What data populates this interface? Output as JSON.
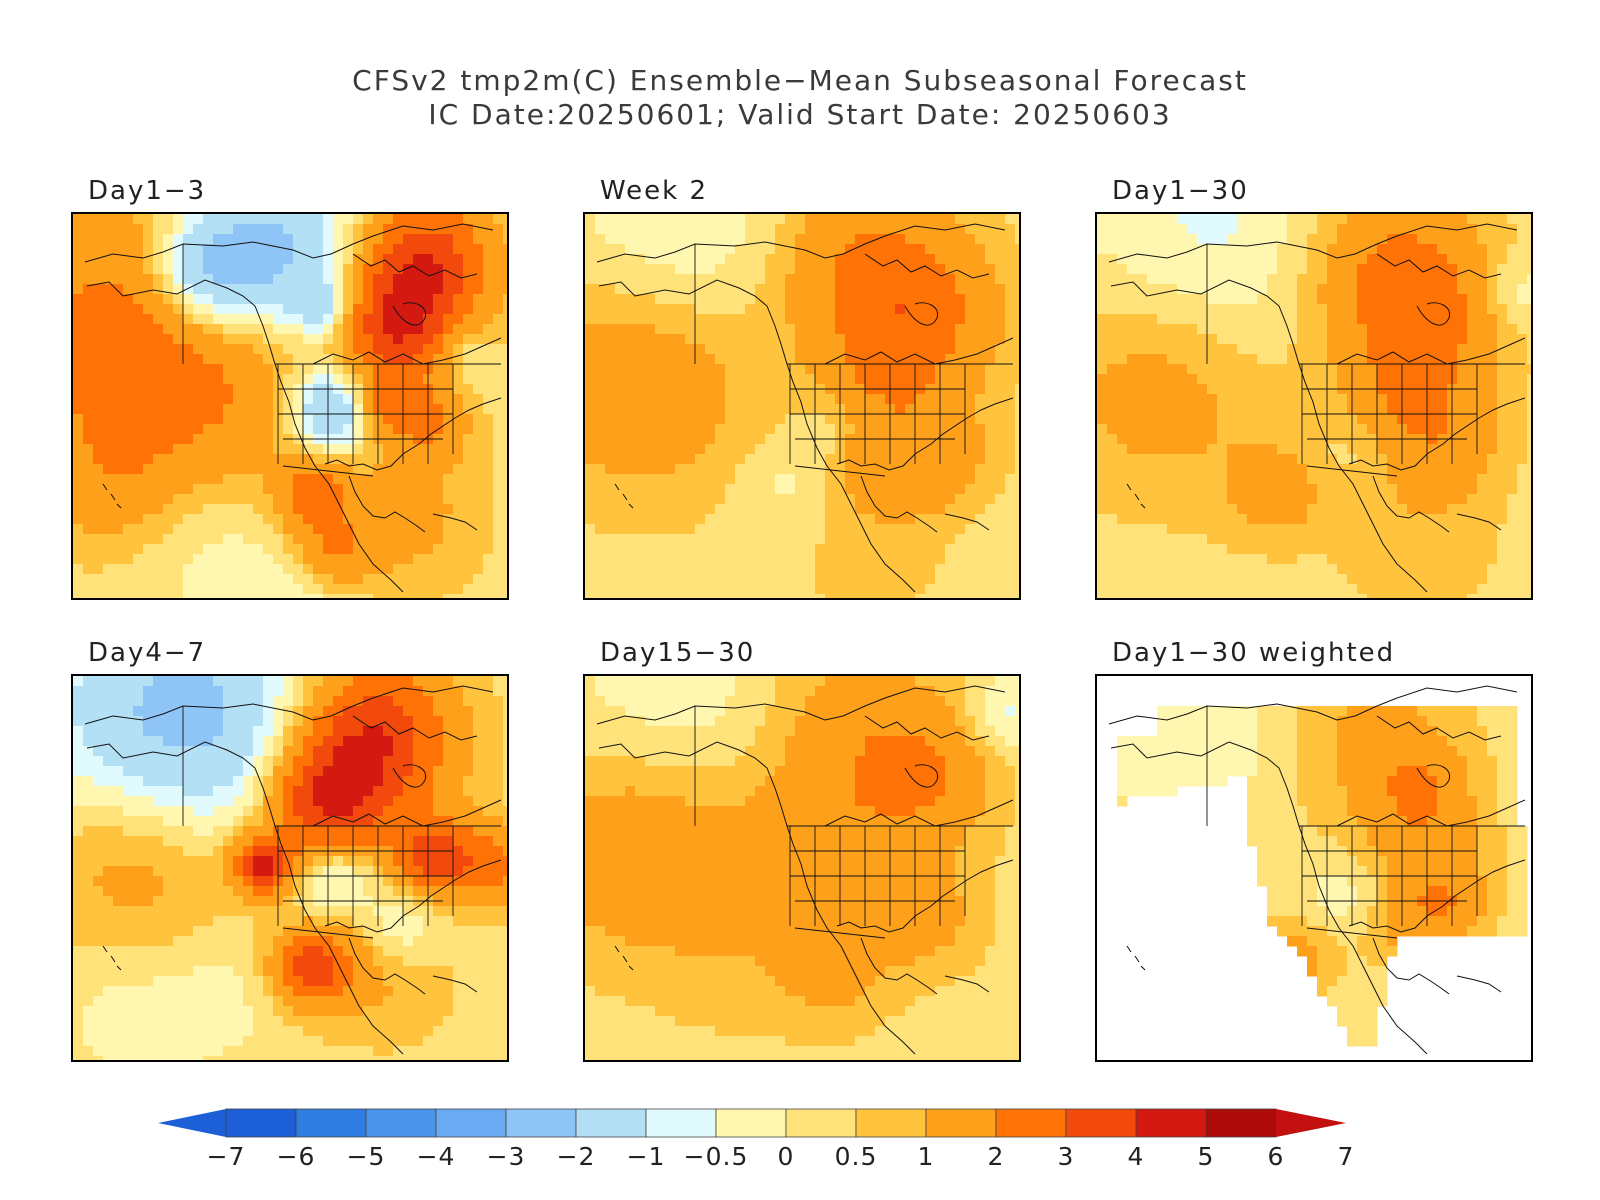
{
  "header": {
    "line1": "CFSv2 tmp2m(C) Ensemble−Mean Subseasonal Forecast",
    "line2": "IC Date:20250601; Valid Start Date: 20250603"
  },
  "panels": [
    {
      "label": "Day1−3",
      "pattern": "d13"
    },
    {
      "label": "Week 2",
      "pattern": "w2"
    },
    {
      "label": "Day1−30",
      "pattern": "d130"
    },
    {
      "label": "Day4−7",
      "pattern": "d47"
    },
    {
      "label": "Day15−30",
      "pattern": "d1530"
    },
    {
      "label": "Day1−30 weighted",
      "pattern": "w130"
    }
  ],
  "colorbar": {
    "labels": [
      "−7",
      "−6",
      "−5",
      "−4",
      "−3",
      "−2",
      "−1",
      "−0.5",
      "0",
      "0.5",
      "1",
      "2",
      "3",
      "4",
      "5",
      "6",
      "7"
    ],
    "colors": [
      "#1c5fd6",
      "#2f7de2",
      "#4a94ec",
      "#6aaaf2",
      "#8fc4f6",
      "#b4e0f5",
      "#e0fafd",
      "#fff7b0",
      "#ffe27a",
      "#ffc33e",
      "#ffa01a",
      "#ff7206",
      "#f24a0c",
      "#d41a10",
      "#ad0a0a"
    ],
    "low_arrow_color": "#1c5fd6",
    "high_arrow_color": "#c21010"
  }
}
